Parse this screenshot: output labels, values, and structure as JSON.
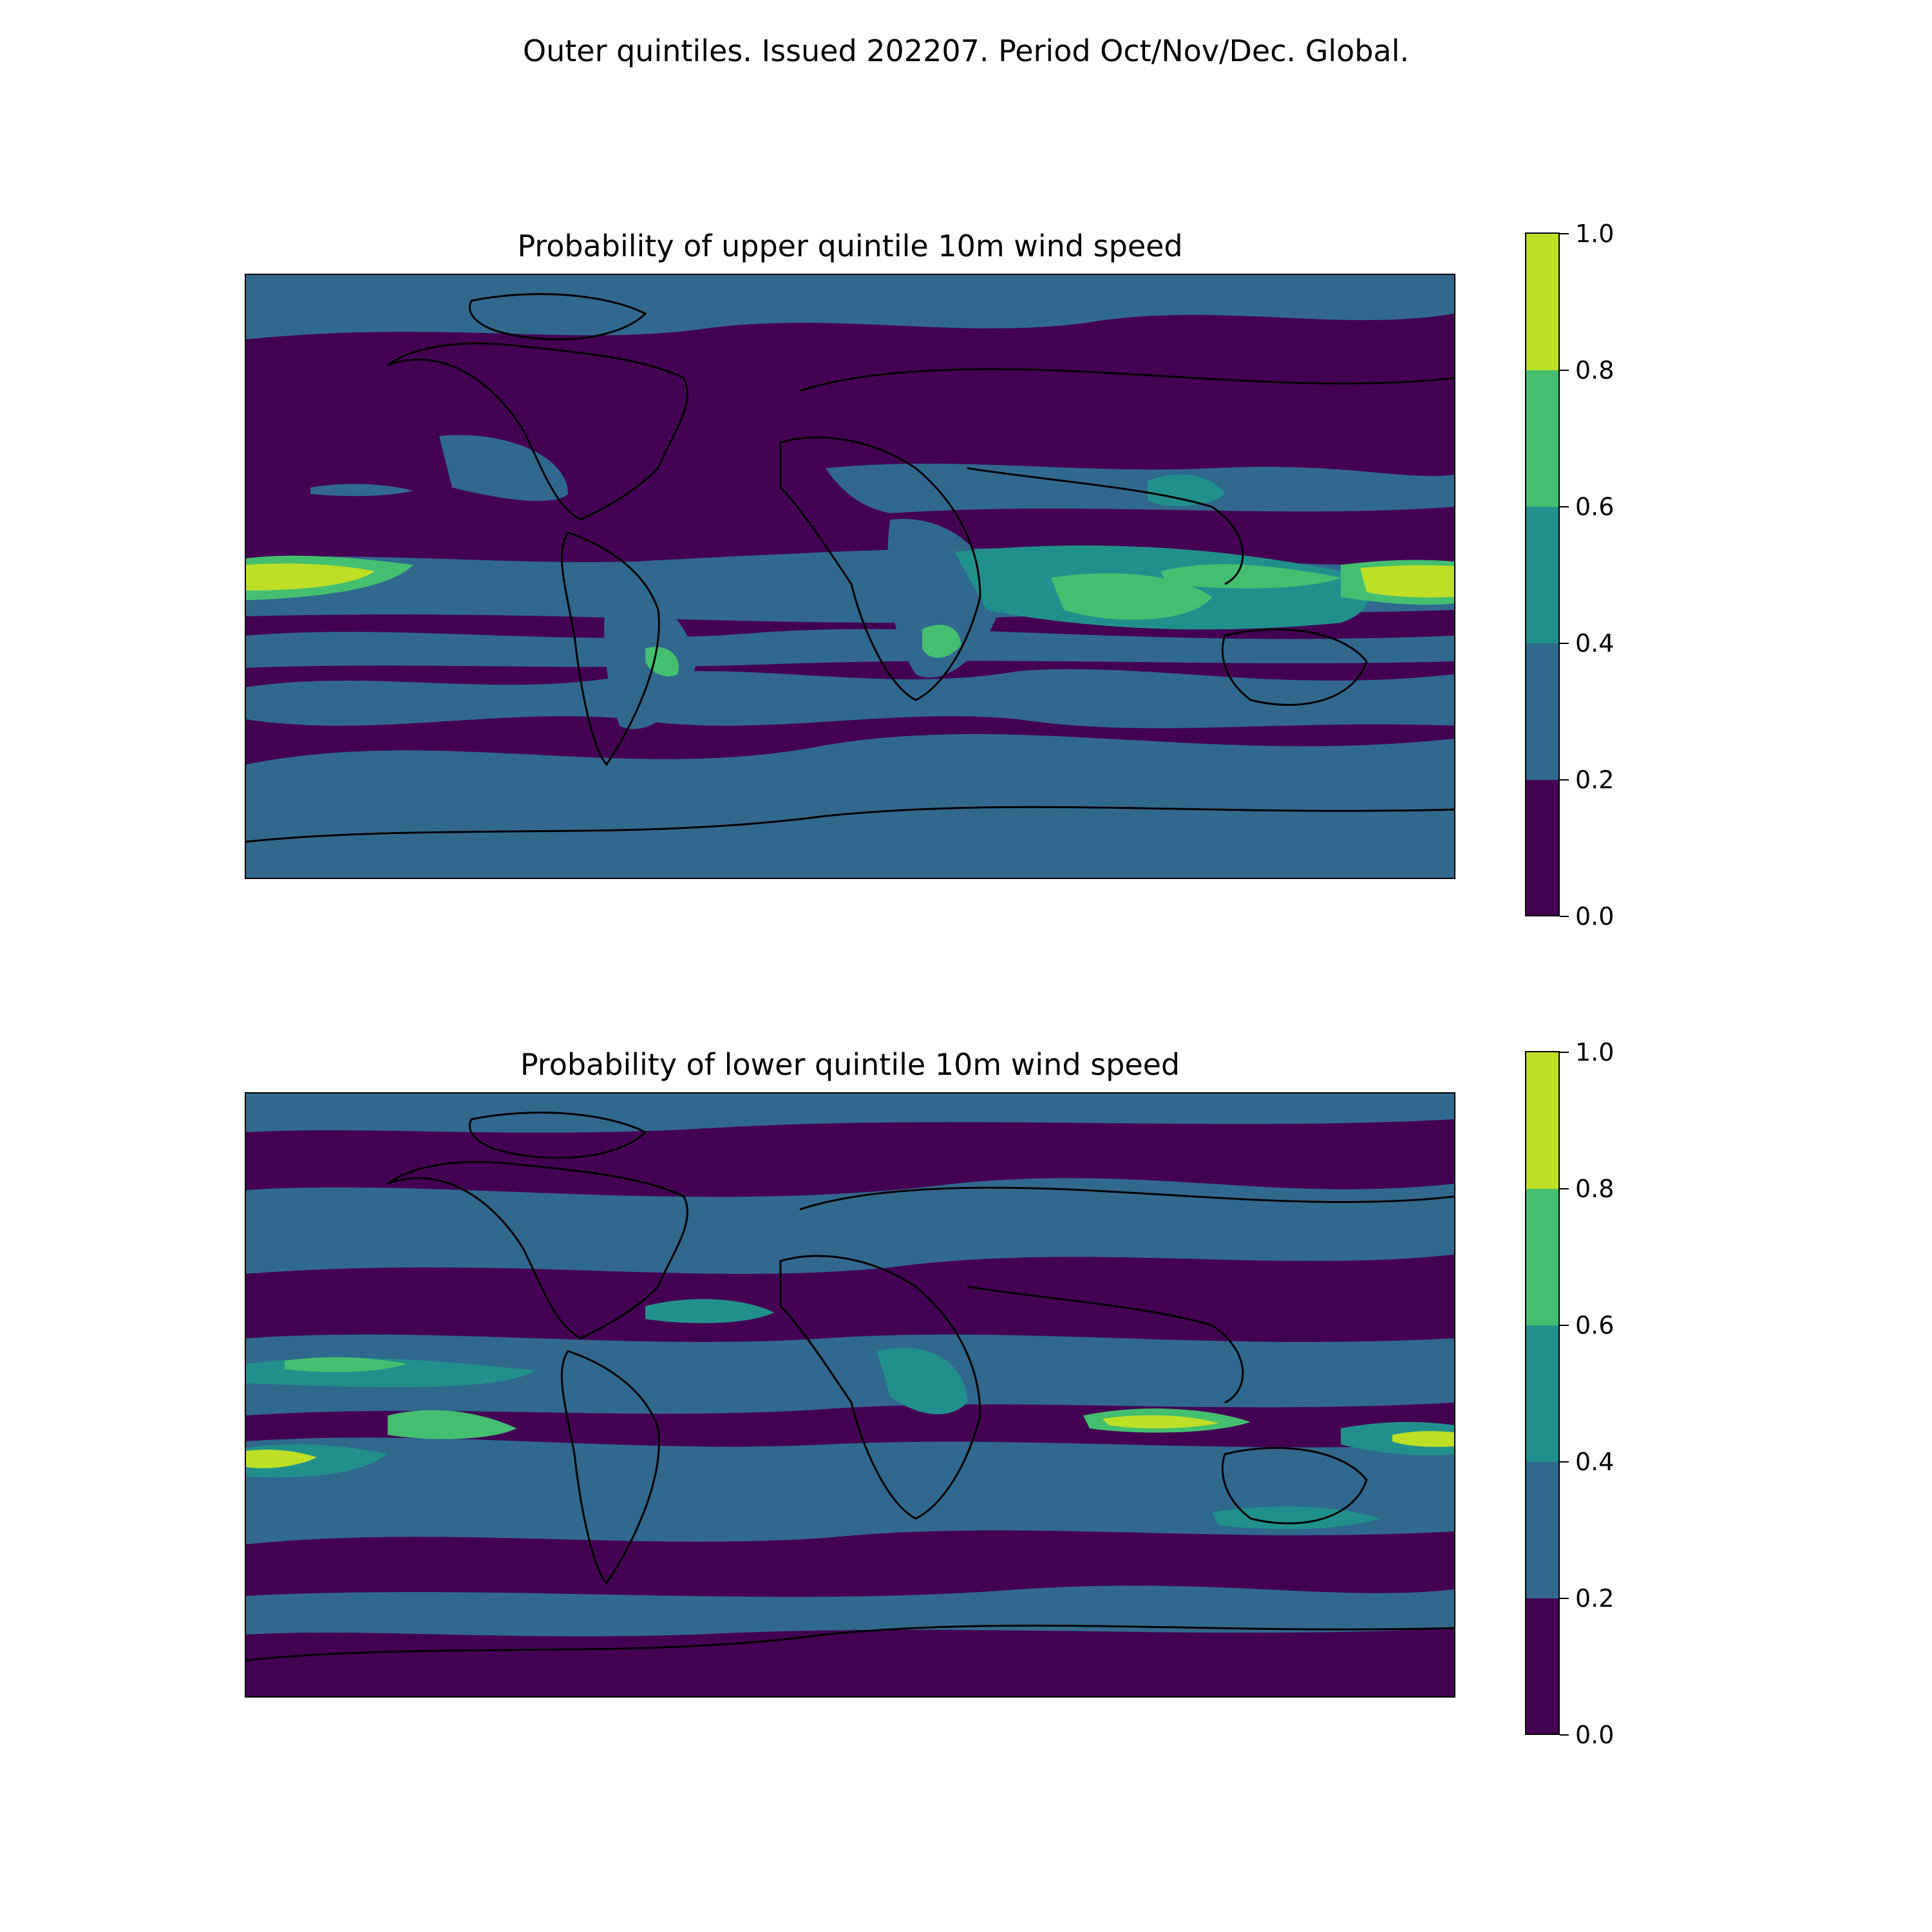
{
  "figure": {
    "suptitle": "Outer quintiles. Issued 202207. Period Oct/Nov/Dec. Global."
  },
  "colors": {
    "levels": [
      "#440154",
      "#31688e",
      "#21908c",
      "#44bf70",
      "#bddf26"
    ],
    "coastline": "#000000"
  },
  "panels": [
    {
      "title": "Probability of upper quintile 10m wind speed",
      "colorbar": {
        "ticks": [
          "0.0",
          "0.2",
          "0.4",
          "0.6",
          "0.8",
          "1.0"
        ]
      }
    },
    {
      "title": "Probability of lower quintile 10m wind speed",
      "colorbar": {
        "ticks": [
          "0.0",
          "0.2",
          "0.4",
          "0.6",
          "0.8",
          "1.0"
        ]
      }
    }
  ],
  "chart_data": {
    "type": "heatmap",
    "projection": "global lat/lon",
    "levels": [
      0.0,
      0.2,
      0.4,
      0.6,
      0.8,
      1.0
    ],
    "colorbar_range": [
      0.0,
      1.0
    ]
  }
}
